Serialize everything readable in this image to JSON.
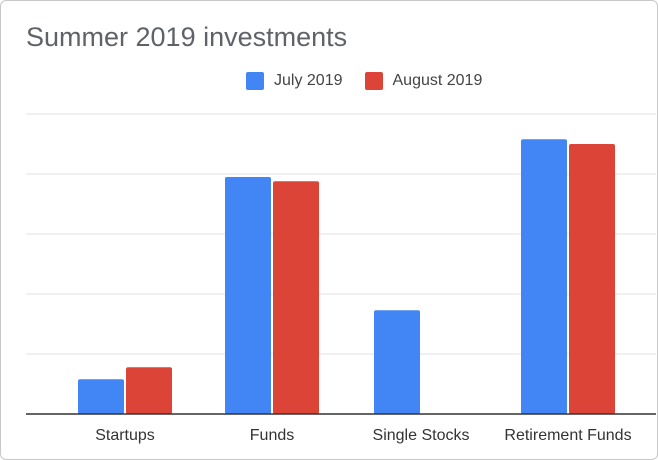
{
  "title": "Summer 2019 investments",
  "colors": {
    "july": "#4285f4",
    "august": "#db4437",
    "grid": "#e0e0e0",
    "axis": "#333333"
  },
  "chart_data": {
    "type": "bar",
    "title": "Summer 2019 investments",
    "xlabel": "",
    "ylabel": "",
    "ylim": [
      0,
      50
    ],
    "grid": true,
    "legend_position": "top",
    "categories": [
      "Startups",
      "Funds",
      "Single Stocks",
      "Retirement Funds"
    ],
    "series": [
      {
        "name": "July 2019",
        "color": "#4285f4",
        "values": [
          5.8,
          39.5,
          17.3,
          45.8
        ]
      },
      {
        "name": "August 2019",
        "color": "#db4437",
        "values": [
          7.8,
          38.8,
          0,
          45.0
        ]
      }
    ]
  }
}
